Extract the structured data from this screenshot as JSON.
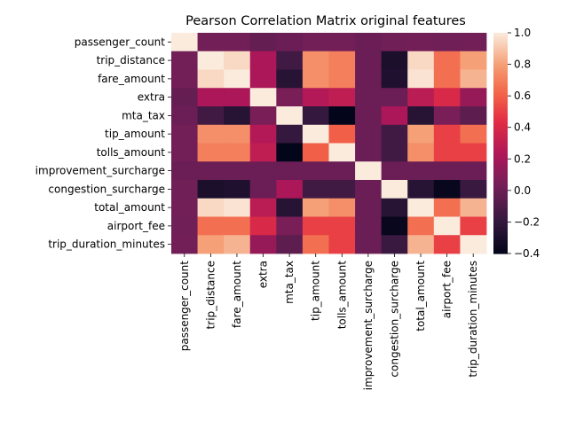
{
  "chart_data": {
    "type": "heatmap",
    "title": "Pearson Correlation Matrix original features",
    "xlabel": "",
    "ylabel": "",
    "labels": [
      "passenger_count",
      "trip_distance",
      "fare_amount",
      "extra",
      "mta_tax",
      "tip_amount",
      "tolls_amount",
      "improvement_surcharge",
      "congestion_surcharge",
      "total_amount",
      "airport_fee",
      "trip_duration_minutes"
    ],
    "matrix": [
      [
        1.0,
        0.03,
        0.03,
        -0.02,
        0.0,
        0.03,
        0.03,
        0.0,
        0.02,
        0.03,
        0.02,
        0.03
      ],
      [
        0.03,
        1.0,
        0.95,
        0.22,
        -0.15,
        0.75,
        0.7,
        0.0,
        -0.3,
        0.95,
        0.65,
        0.8
      ],
      [
        0.03,
        0.95,
        1.0,
        0.22,
        -0.25,
        0.75,
        0.7,
        0.0,
        -0.28,
        0.98,
        0.65,
        0.85
      ],
      [
        -0.02,
        0.22,
        0.22,
        1.0,
        0.05,
        0.25,
        0.3,
        0.0,
        0.0,
        0.28,
        0.4,
        0.15
      ],
      [
        0.0,
        -0.15,
        -0.25,
        0.05,
        1.0,
        -0.2,
        -0.4,
        0.0,
        0.22,
        -0.25,
        0.05,
        -0.05
      ],
      [
        0.03,
        0.75,
        0.75,
        0.25,
        -0.2,
        1.0,
        0.6,
        0.0,
        -0.15,
        0.8,
        0.5,
        0.65
      ],
      [
        0.03,
        0.7,
        0.7,
        0.3,
        -0.4,
        0.6,
        1.0,
        0.0,
        -0.15,
        0.75,
        0.5,
        0.5
      ],
      [
        0.0,
        0.0,
        0.0,
        0.0,
        0.0,
        0.0,
        0.0,
        1.0,
        0.0,
        0.0,
        0.0,
        0.0
      ],
      [
        0.02,
        -0.3,
        -0.28,
        0.0,
        0.22,
        -0.15,
        -0.15,
        0.0,
        1.0,
        -0.25,
        -0.38,
        -0.18
      ],
      [
        0.03,
        0.95,
        0.98,
        0.28,
        -0.25,
        0.8,
        0.75,
        0.0,
        -0.25,
        1.0,
        0.65,
        0.85
      ],
      [
        0.02,
        0.65,
        0.65,
        0.4,
        0.05,
        0.5,
        0.5,
        0.0,
        -0.38,
        0.65,
        1.0,
        0.5
      ],
      [
        0.03,
        0.8,
        0.85,
        0.15,
        -0.05,
        0.65,
        0.5,
        0.0,
        -0.18,
        0.85,
        0.5,
        1.0
      ]
    ],
    "colorscale": "rocket",
    "vmin": -0.4,
    "vmax": 1.0,
    "colorbar_ticks": [
      "−0.4",
      "−0.2",
      "0.0",
      "0.2",
      "0.4",
      "0.6",
      "0.8",
      "1.0"
    ],
    "colorbar_tick_values": [
      -0.4,
      -0.2,
      0.0,
      0.2,
      0.4,
      0.6,
      0.8,
      1.0
    ]
  }
}
